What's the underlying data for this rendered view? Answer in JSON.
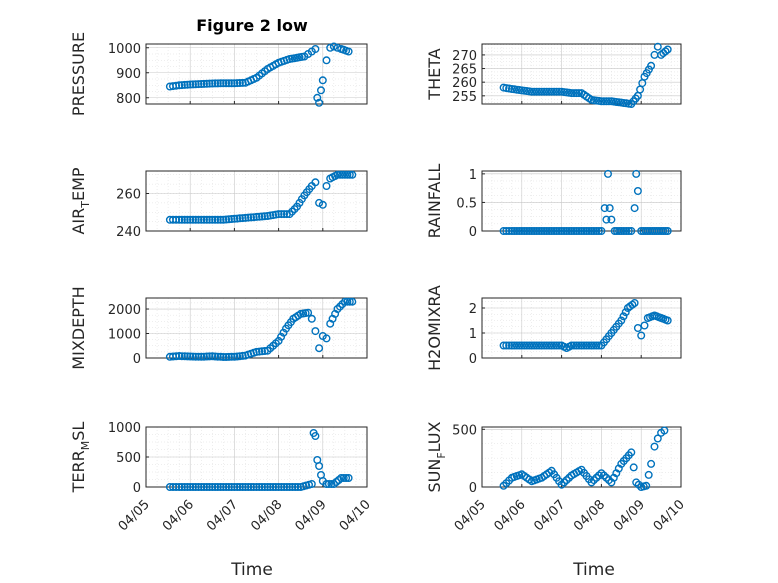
{
  "figure_title": "Figure 2 low",
  "xlabel": "Time",
  "colors": {
    "marker": "#0072bd",
    "axis": "#262626"
  },
  "chart_data": [
    {
      "type": "scatter",
      "name": "pressure",
      "ylabel": "PRESSURE",
      "ylabel_sub": "",
      "ylabel_tail": "",
      "xlim": [
        "04/05",
        "04/10"
      ],
      "ylim": [
        775,
        1015
      ],
      "yticks": [
        800,
        900,
        1000
      ],
      "x": [
        "04/05 13:00",
        "04/05 18:00",
        "04/06 00:00",
        "04/06 06:00",
        "04/06 12:00",
        "04/06 18:00",
        "04/07 00:00",
        "04/07 06:00",
        "04/07 12:00",
        "04/07 18:00",
        "04/08 00:00",
        "04/08 06:00",
        "04/08 10:00",
        "04/08 14:00",
        "04/08 16:00",
        "04/08 18:00",
        "04/08 20:00",
        "04/08 21:00",
        "04/08 22:00",
        "04/08 23:00",
        "04/09 00:00",
        "04/09 02:00",
        "04/09 04:00",
        "04/09 06:00",
        "04/09 08:00",
        "04/09 10:00",
        "04/09 14:00"
      ],
      "y": [
        845,
        850,
        853,
        855,
        857,
        858,
        858,
        860,
        880,
        915,
        940,
        955,
        960,
        965,
        975,
        985,
        995,
        800,
        780,
        830,
        870,
        950,
        1000,
        1005,
        1000,
        995,
        985
      ]
    },
    {
      "type": "scatter",
      "name": "theta",
      "ylabel": "THETA",
      "ylabel_sub": "",
      "ylabel_tail": "",
      "xlim": [
        "04/05",
        "04/10"
      ],
      "ylim": [
        252,
        274
      ],
      "yticks": [
        255,
        260,
        265,
        270
      ],
      "x": [
        "04/05 13:00",
        "04/05 18:00",
        "04/06 00:00",
        "04/06 06:00",
        "04/06 12:00",
        "04/06 18:00",
        "04/07 00:00",
        "04/07 06:00",
        "04/07 12:00",
        "04/07 18:00",
        "04/08 00:00",
        "04/08 06:00",
        "04/08 12:00",
        "04/08 18:00",
        "04/08 22:00",
        "04/09 02:00",
        "04/09 06:00",
        "04/09 08:00",
        "04/09 10:00",
        "04/09 12:00",
        "04/09 16:00"
      ],
      "y": [
        258,
        257.5,
        257,
        256.5,
        256.5,
        256.5,
        256.5,
        256,
        256,
        253.5,
        253,
        253,
        252.5,
        252,
        255,
        262,
        266,
        270,
        273,
        270,
        272
      ]
    },
    {
      "type": "scatter",
      "name": "air_temp",
      "ylabel": "AIR",
      "ylabel_sub": "T",
      "ylabel_tail": "EMP",
      "xlim": [
        "04/05",
        "04/10"
      ],
      "ylim": [
        240,
        272
      ],
      "yticks": [
        240,
        260
      ],
      "x": [
        "04/05 13:00",
        "04/05 18:00",
        "04/06 00:00",
        "04/06 06:00",
        "04/06 12:00",
        "04/06 18:00",
        "04/07 00:00",
        "04/07 06:00",
        "04/07 12:00",
        "04/07 18:00",
        "04/08 00:00",
        "04/08 03:00",
        "04/08 06:00",
        "04/08 10:00",
        "04/08 14:00",
        "04/08 18:00",
        "04/08 20:00",
        "04/08 22:00",
        "04/09 00:00",
        "04/09 02:00",
        "04/09 04:00",
        "04/09 08:00",
        "04/09 12:00",
        "04/09 16:00"
      ],
      "y": [
        246,
        246,
        246,
        246,
        246,
        246,
        246.5,
        247,
        247.5,
        248,
        249,
        249,
        249,
        253,
        259,
        264,
        266,
        255,
        254,
        264,
        268,
        270,
        270,
        270
      ]
    },
    {
      "type": "scatter",
      "name": "rainfall",
      "ylabel": "RAINFALL",
      "ylabel_sub": "",
      "ylabel_tail": "",
      "xlim": [
        "04/05",
        "04/10"
      ],
      "ylim": [
        0,
        1.05
      ],
      "yticks": [
        0,
        0.5,
        1
      ],
      "x": [
        "04/05 13:00",
        "04/05 18:00",
        "04/06 00:00",
        "04/06 06:00",
        "04/06 12:00",
        "04/06 18:00",
        "04/07 00:00",
        "04/07 06:00",
        "04/07 12:00",
        "04/07 18:00",
        "04/08 00:00",
        "04/08 02:00",
        "04/08 03:00",
        "04/08 04:00",
        "04/08 05:00",
        "04/08 06:00",
        "04/08 08:00",
        "04/08 12:00",
        "04/08 18:00",
        "04/08 20:00",
        "04/08 21:00",
        "04/08 22:00",
        "04/09 00:00",
        "04/09 04:00",
        "04/09 08:00",
        "04/09 12:00",
        "04/09 16:00"
      ],
      "y": [
        0,
        0,
        0,
        0,
        0,
        0,
        0,
        0,
        0,
        0,
        0,
        0.4,
        0.2,
        1.0,
        0.4,
        0.2,
        0,
        0,
        0,
        0.4,
        1.0,
        0.7,
        0,
        0,
        0,
        0,
        0
      ]
    },
    {
      "type": "scatter",
      "name": "mixdepth",
      "ylabel": "MIXDEPTH",
      "ylabel_sub": "",
      "ylabel_tail": "",
      "xlim": [
        "04/05",
        "04/10"
      ],
      "ylim": [
        0,
        2450
      ],
      "yticks": [
        0,
        1000,
        2000
      ],
      "x": [
        "04/05 13:00",
        "04/05 18:00",
        "04/06 00:00",
        "04/06 06:00",
        "04/06 12:00",
        "04/06 18:00",
        "04/07 00:00",
        "04/07 06:00",
        "04/07 12:00",
        "04/07 18:00",
        "04/08 00:00",
        "04/08 04:00",
        "04/08 08:00",
        "04/08 12:00",
        "04/08 16:00",
        "04/08 18:00",
        "04/08 20:00",
        "04/08 22:00",
        "04/09 00:00",
        "04/09 02:00",
        "04/09 04:00",
        "04/09 08:00",
        "04/09 12:00",
        "04/09 16:00"
      ],
      "y": [
        50,
        80,
        60,
        50,
        70,
        40,
        50,
        100,
        250,
        300,
        700,
        1200,
        1600,
        1800,
        1850,
        1600,
        1100,
        400,
        900,
        800,
        1400,
        2000,
        2300,
        2300
      ]
    },
    {
      "type": "scatter",
      "name": "h2omixra",
      "ylabel": "H2OMIXRA",
      "ylabel_sub": "",
      "ylabel_tail": "",
      "xlim": [
        "04/05",
        "04/10"
      ],
      "ylim": [
        0,
        2.4
      ],
      "yticks": [
        0,
        1,
        2
      ],
      "x": [
        "04/05 13:00",
        "04/05 18:00",
        "04/06 00:00",
        "04/06 06:00",
        "04/06 12:00",
        "04/06 18:00",
        "04/07 00:00",
        "04/07 03:00",
        "04/07 06:00",
        "04/07 12:00",
        "04/07 18:00",
        "04/08 00:00",
        "04/08 06:00",
        "04/08 12:00",
        "04/08 16:00",
        "04/08 20:00",
        "04/08 22:00",
        "04/09 00:00",
        "04/09 02:00",
        "04/09 04:00",
        "04/09 08:00",
        "04/09 12:00",
        "04/09 16:00"
      ],
      "y": [
        0.5,
        0.5,
        0.5,
        0.5,
        0.5,
        0.5,
        0.5,
        0.4,
        0.5,
        0.5,
        0.5,
        0.5,
        1.0,
        1.5,
        2.0,
        2.2,
        1.2,
        0.9,
        1.3,
        1.6,
        1.7,
        1.6,
        1.5
      ]
    },
    {
      "type": "scatter",
      "name": "terr_msl",
      "ylabel": "TERR",
      "ylabel_sub": "M",
      "ylabel_tail": "SL",
      "xlim": [
        "04/05",
        "04/10"
      ],
      "ylim": [
        0,
        1000
      ],
      "yticks": [
        0,
        500,
        1000
      ],
      "x": [
        "04/05 13:00",
        "04/05 18:00",
        "04/06 00:00",
        "04/06 06:00",
        "04/06 12:00",
        "04/06 18:00",
        "04/07 00:00",
        "04/07 06:00",
        "04/07 12:00",
        "04/07 18:00",
        "04/08 00:00",
        "04/08 06:00",
        "04/08 12:00",
        "04/08 18:00",
        "04/08 19:00",
        "04/08 20:00",
        "04/08 21:00",
        "04/08 22:00",
        "04/08 23:00",
        "04/09 00:00",
        "04/09 02:00",
        "04/09 06:00",
        "04/09 10:00",
        "04/09 14:00"
      ],
      "y": [
        0,
        0,
        0,
        0,
        0,
        0,
        0,
        0,
        0,
        0,
        0,
        0,
        0,
        50,
        900,
        850,
        450,
        350,
        200,
        100,
        50,
        50,
        150,
        150
      ]
    },
    {
      "type": "scatter",
      "name": "sun_flux",
      "ylabel": "SUN",
      "ylabel_sub": "F",
      "ylabel_tail": "LUX",
      "xlim": [
        "04/05",
        "04/10"
      ],
      "ylim": [
        0,
        520
      ],
      "yticks": [
        0,
        500
      ],
      "x": [
        "04/05 13:00",
        "04/05 18:00",
        "04/06 00:00",
        "04/06 06:00",
        "04/06 12:00",
        "04/06 18:00",
        "04/07 00:00",
        "04/07 06:00",
        "04/07 12:00",
        "04/07 18:00",
        "04/08 00:00",
        "04/08 06:00",
        "04/08 12:00",
        "04/08 18:00",
        "04/08 21:00",
        "04/09 00:00",
        "04/09 03:00",
        "04/09 06:00",
        "04/09 08:00",
        "04/09 10:00",
        "04/09 12:00",
        "04/09 14:00"
      ],
      "y": [
        10,
        80,
        110,
        50,
        80,
        140,
        20,
        100,
        150,
        40,
        120,
        40,
        200,
        300,
        40,
        0,
        10,
        200,
        350,
        420,
        470,
        490
      ]
    }
  ],
  "xticks": [
    "04/05",
    "04/06",
    "04/07",
    "04/08",
    "04/09",
    "04/10"
  ]
}
